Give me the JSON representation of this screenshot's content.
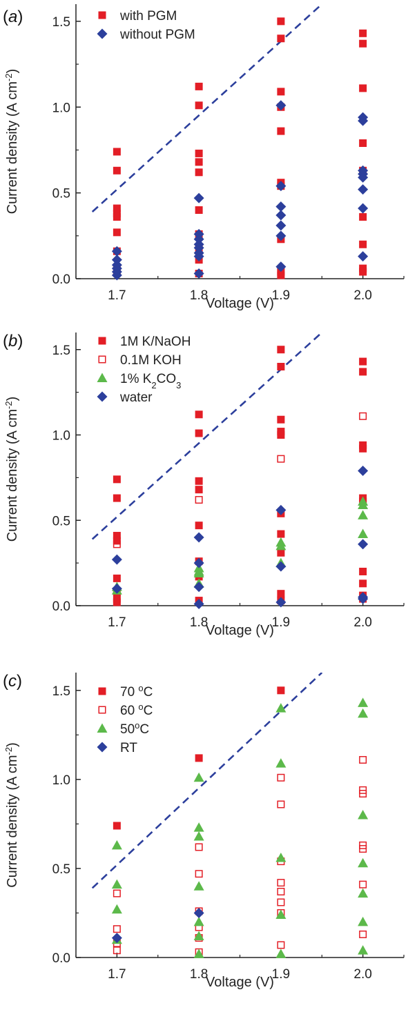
{
  "chart_data": [
    {
      "type": "scatter",
      "panel_label": "a",
      "xlabel": "Voltage (V)",
      "ylabel_main": "Current density (A cm",
      "ylabel_sup": "-2",
      "ylabel_tail": ")",
      "xlim": [
        1.65,
        2.05
      ],
      "ylim": [
        0,
        1.6
      ],
      "x_ticks": [
        1.7,
        1.8,
        1.9,
        2.0
      ],
      "x_tick_labels": [
        "1.7",
        "1.8",
        "1.9",
        "2.0"
      ],
      "y_ticks": [
        0,
        0.5,
        1.0,
        1.5
      ],
      "y_tick_labels": [
        "0.0",
        "0.5",
        "1.0",
        "1.5"
      ],
      "trend_line": [
        [
          1.67,
          0.39
        ],
        [
          1.95,
          1.6
        ]
      ],
      "legend": [
        {
          "label": "with PGM",
          "sub": "",
          "tail": "",
          "series": 0
        },
        {
          "label": "without PGM",
          "sub": "",
          "tail": "",
          "series": 1
        }
      ],
      "series": [
        {
          "name": "with PGM",
          "marker": "square",
          "color": "#e31e26",
          "points": [
            [
              1.7,
              0.74
            ],
            [
              1.7,
              0.63
            ],
            [
              1.7,
              0.41
            ],
            [
              1.7,
              0.38
            ],
            [
              1.7,
              0.36
            ],
            [
              1.7,
              0.27
            ],
            [
              1.7,
              0.16
            ],
            [
              1.7,
              0.05
            ],
            [
              1.8,
              1.12
            ],
            [
              1.8,
              1.01
            ],
            [
              1.8,
              0.73
            ],
            [
              1.8,
              0.68
            ],
            [
              1.8,
              0.62
            ],
            [
              1.8,
              0.4
            ],
            [
              1.8,
              0.26
            ],
            [
              1.8,
              0.17
            ],
            [
              1.8,
              0.11
            ],
            [
              1.8,
              0.03
            ],
            [
              1.9,
              1.5
            ],
            [
              1.9,
              1.4
            ],
            [
              1.9,
              1.09
            ],
            [
              1.9,
              1.0
            ],
            [
              1.9,
              0.86
            ],
            [
              1.9,
              0.56
            ],
            [
              1.9,
              0.54
            ],
            [
              1.9,
              0.23
            ],
            [
              1.9,
              0.04
            ],
            [
              1.9,
              0.02
            ],
            [
              2.0,
              1.43
            ],
            [
              2.0,
              1.37
            ],
            [
              2.0,
              1.11
            ],
            [
              2.0,
              0.79
            ],
            [
              2.0,
              0.63
            ],
            [
              2.0,
              0.36
            ],
            [
              2.0,
              0.2
            ],
            [
              2.0,
              0.06
            ],
            [
              2.0,
              0.04
            ]
          ]
        },
        {
          "name": "without PGM",
          "marker": "diamond",
          "color": "#2c3f9c",
          "points": [
            [
              1.7,
              0.16
            ],
            [
              1.7,
              0.11
            ],
            [
              1.7,
              0.08
            ],
            [
              1.7,
              0.06
            ],
            [
              1.7,
              0.04
            ],
            [
              1.7,
              0.02
            ],
            [
              1.8,
              0.47
            ],
            [
              1.8,
              0.26
            ],
            [
              1.8,
              0.23
            ],
            [
              1.8,
              0.2
            ],
            [
              1.8,
              0.18
            ],
            [
              1.8,
              0.15
            ],
            [
              1.8,
              0.13
            ],
            [
              1.8,
              0.03
            ],
            [
              1.9,
              1.01
            ],
            [
              1.9,
              0.54
            ],
            [
              1.9,
              0.42
            ],
            [
              1.9,
              0.37
            ],
            [
              1.9,
              0.31
            ],
            [
              1.9,
              0.25
            ],
            [
              1.9,
              0.07
            ],
            [
              2.0,
              0.94
            ],
            [
              2.0,
              0.92
            ],
            [
              2.0,
              0.63
            ],
            [
              2.0,
              0.61
            ],
            [
              2.0,
              0.59
            ],
            [
              2.0,
              0.52
            ],
            [
              2.0,
              0.41
            ],
            [
              2.0,
              0.13
            ]
          ]
        }
      ]
    },
    {
      "type": "scatter",
      "panel_label": "b",
      "xlabel": "Voltage (V)",
      "ylabel_main": "Current density (A cm",
      "ylabel_sup": "-2",
      "ylabel_tail": ")",
      "xlim": [
        1.65,
        2.05
      ],
      "ylim": [
        0,
        1.6
      ],
      "x_ticks": [
        1.7,
        1.8,
        1.9,
        2.0
      ],
      "x_tick_labels": [
        "1.7",
        "1.8",
        "1.9",
        "2.0"
      ],
      "y_ticks": [
        0,
        0.5,
        1.0,
        1.5
      ],
      "y_tick_labels": [
        "0.0",
        "0.5",
        "1.0",
        "1.5"
      ],
      "trend_line": [
        [
          1.67,
          0.39
        ],
        [
          1.95,
          1.6
        ]
      ],
      "legend": [
        {
          "label": "1M K/NaOH",
          "sub": "",
          "tail": "",
          "series": 0
        },
        {
          "label": "0.1M KOH",
          "sub": "",
          "tail": "",
          "series": 1
        },
        {
          "label": "1% K",
          "sub": "2",
          "tail": "CO",
          "sub2": "3",
          "series": 2
        },
        {
          "label": "water",
          "sub": "",
          "tail": "",
          "series": 3
        }
      ],
      "series": [
        {
          "name": "1M K/NaOH",
          "marker": "square",
          "color": "#e31e26",
          "points": [
            [
              1.7,
              0.74
            ],
            [
              1.7,
              0.63
            ],
            [
              1.7,
              0.41
            ],
            [
              1.7,
              0.38
            ],
            [
              1.7,
              0.16
            ],
            [
              1.7,
              0.08
            ],
            [
              1.7,
              0.04
            ],
            [
              1.7,
              0.02
            ],
            [
              1.8,
              1.12
            ],
            [
              1.8,
              1.01
            ],
            [
              1.8,
              0.73
            ],
            [
              1.8,
              0.68
            ],
            [
              1.8,
              0.47
            ],
            [
              1.8,
              0.26
            ],
            [
              1.8,
              0.17
            ],
            [
              1.8,
              0.03
            ],
            [
              1.9,
              1.5
            ],
            [
              1.9,
              1.4
            ],
            [
              1.9,
              1.09
            ],
            [
              1.9,
              1.02
            ],
            [
              1.9,
              1.0
            ],
            [
              1.9,
              0.54
            ],
            [
              1.9,
              0.42
            ],
            [
              1.9,
              0.31
            ],
            [
              1.9,
              0.07
            ],
            [
              1.9,
              0.03
            ],
            [
              2.0,
              1.43
            ],
            [
              2.0,
              1.37
            ],
            [
              2.0,
              0.94
            ],
            [
              2.0,
              0.92
            ],
            [
              2.0,
              0.63
            ],
            [
              2.0,
              0.61
            ],
            [
              2.0,
              0.2
            ],
            [
              2.0,
              0.13
            ],
            [
              2.0,
              0.06
            ],
            [
              2.0,
              0.04
            ]
          ]
        },
        {
          "name": "0.1M KOH",
          "marker": "open-square",
          "color": "#e31e26",
          "points": [
            [
              1.7,
              0.36
            ],
            [
              1.8,
              0.62
            ],
            [
              1.9,
              0.86
            ],
            [
              2.0,
              1.11
            ]
          ]
        },
        {
          "name": "1% K2CO3",
          "marker": "triangle",
          "color": "#5cb94a",
          "points": [
            [
              1.7,
              0.11
            ],
            [
              1.7,
              0.09
            ],
            [
              1.8,
              0.22
            ],
            [
              1.8,
              0.2
            ],
            [
              1.8,
              0.19
            ],
            [
              1.8,
              0.13
            ],
            [
              1.9,
              0.37
            ],
            [
              1.9,
              0.35
            ],
            [
              1.9,
              0.25
            ],
            [
              2.0,
              0.61
            ],
            [
              2.0,
              0.59
            ],
            [
              2.0,
              0.53
            ],
            [
              2.0,
              0.42
            ]
          ]
        },
        {
          "name": "water",
          "marker": "diamond",
          "color": "#2c3f9c",
          "points": [
            [
              1.7,
              0.27
            ],
            [
              1.7,
              0.1
            ],
            [
              1.8,
              0.4
            ],
            [
              1.8,
              0.25
            ],
            [
              1.8,
              0.11
            ],
            [
              1.8,
              0.01
            ],
            [
              1.9,
              0.56
            ],
            [
              1.9,
              0.23
            ],
            [
              1.9,
              0.02
            ],
            [
              2.0,
              0.79
            ],
            [
              2.0,
              0.36
            ],
            [
              2.0,
              0.05
            ],
            [
              2.0,
              0.04
            ]
          ]
        }
      ]
    },
    {
      "type": "scatter",
      "panel_label": "c",
      "xlabel": "Voltage (V)",
      "ylabel_main": "Current density (A cm",
      "ylabel_sup": "-2",
      "ylabel_tail": ")",
      "xlim": [
        1.65,
        2.05
      ],
      "ylim": [
        0,
        1.6
      ],
      "x_ticks": [
        1.7,
        1.8,
        1.9,
        2.0
      ],
      "x_tick_labels": [
        "1.7",
        "1.8",
        "1.9",
        "2.0"
      ],
      "y_ticks": [
        0,
        0.5,
        1.0,
        1.5
      ],
      "y_tick_labels": [
        "0.0",
        "0.5",
        "1.0",
        "1.5"
      ],
      "trend_line": [
        [
          1.67,
          0.39
        ],
        [
          1.95,
          1.6
        ]
      ],
      "legend": [
        {
          "label": "70 ",
          "sup": "o",
          "tail": "C",
          "series": 0
        },
        {
          "label": "60 ",
          "sup": "o",
          "tail": "C",
          "series": 1
        },
        {
          "label": "50",
          "sup": "o",
          "tail": "C",
          "series": 2
        },
        {
          "label": "RT",
          "sup": "",
          "tail": "",
          "series": 3
        }
      ],
      "series": [
        {
          "name": "70 oC",
          "marker": "square",
          "color": "#e31e26",
          "points": [
            [
              1.7,
              0.74
            ],
            [
              1.8,
              1.12
            ],
            [
              1.9,
              1.5
            ]
          ]
        },
        {
          "name": "60 oC",
          "marker": "open-square",
          "color": "#e31e26",
          "points": [
            [
              1.7,
              0.36
            ],
            [
              1.7,
              0.16
            ],
            [
              1.7,
              0.08
            ],
            [
              1.7,
              0.04
            ],
            [
              1.8,
              0.62
            ],
            [
              1.8,
              0.47
            ],
            [
              1.8,
              0.26
            ],
            [
              1.8,
              0.17
            ],
            [
              1.8,
              0.11
            ],
            [
              1.8,
              0.03
            ],
            [
              1.9,
              1.01
            ],
            [
              1.9,
              0.86
            ],
            [
              1.9,
              0.54
            ],
            [
              1.9,
              0.42
            ],
            [
              1.9,
              0.37
            ],
            [
              1.9,
              0.31
            ],
            [
              1.9,
              0.25
            ],
            [
              1.9,
              0.07
            ],
            [
              2.0,
              1.11
            ],
            [
              2.0,
              0.94
            ],
            [
              2.0,
              0.92
            ],
            [
              2.0,
              0.63
            ],
            [
              2.0,
              0.61
            ],
            [
              2.0,
              0.41
            ],
            [
              2.0,
              0.13
            ]
          ]
        },
        {
          "name": "50 oC",
          "marker": "triangle",
          "color": "#5cb94a",
          "points": [
            [
              1.7,
              0.63
            ],
            [
              1.7,
              0.41
            ],
            [
              1.7,
              0.27
            ],
            [
              1.7,
              0.1
            ],
            [
              1.8,
              1.01
            ],
            [
              1.8,
              0.73
            ],
            [
              1.8,
              0.68
            ],
            [
              1.8,
              0.4
            ],
            [
              1.8,
              0.2
            ],
            [
              1.8,
              0.12
            ],
            [
              1.8,
              0.02
            ],
            [
              1.9,
              1.4
            ],
            [
              1.9,
              1.09
            ],
            [
              1.9,
              0.56
            ],
            [
              1.9,
              0.24
            ],
            [
              1.9,
              0.02
            ],
            [
              2.0,
              1.43
            ],
            [
              2.0,
              1.37
            ],
            [
              2.0,
              0.8
            ],
            [
              2.0,
              0.53
            ],
            [
              2.0,
              0.36
            ],
            [
              2.0,
              0.2
            ],
            [
              2.0,
              0.04
            ]
          ]
        },
        {
          "name": "RT",
          "marker": "diamond",
          "color": "#2c3f9c",
          "points": [
            [
              1.7,
              0.11
            ],
            [
              1.8,
              0.25
            ]
          ]
        }
      ]
    }
  ]
}
